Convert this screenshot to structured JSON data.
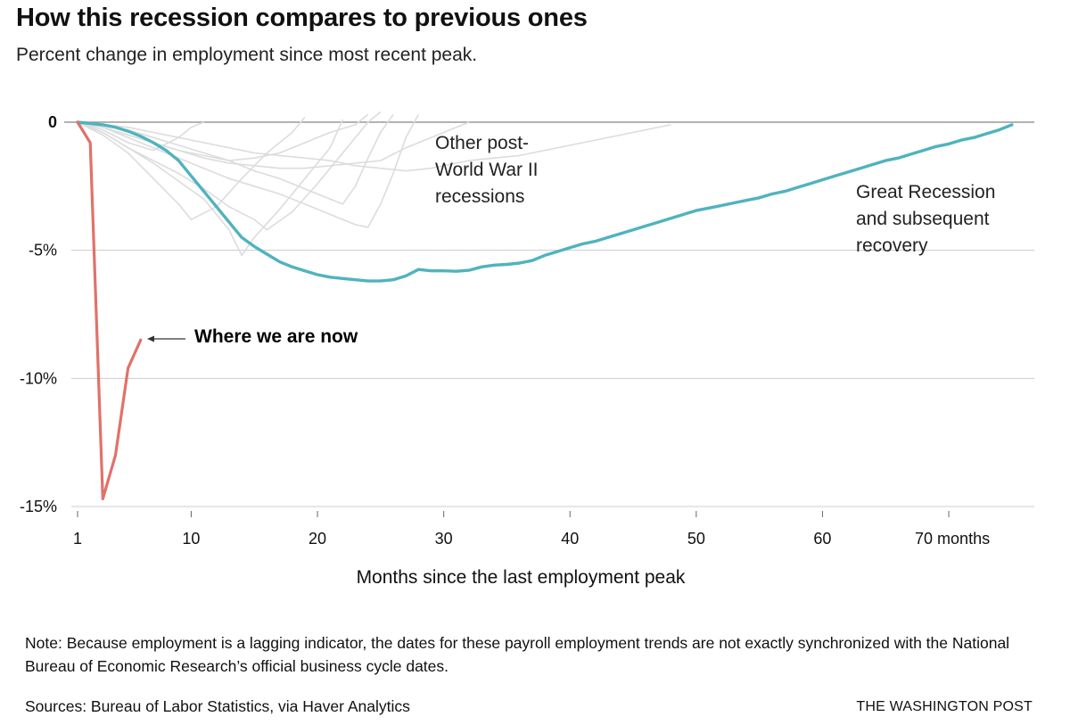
{
  "header": {
    "title": "How this recession compares to previous ones",
    "subtitle": "Percent change in employment since most recent peak."
  },
  "annotations": {
    "other_recessions": [
      "Other post-",
      "World War II",
      "recessions"
    ],
    "great_recession": [
      "Great Recession",
      "and subsequent",
      "recovery"
    ],
    "where_we_are_now": "Where we are now"
  },
  "colors": {
    "current": "#e0726a",
    "great_recession": "#4fb3bf",
    "other": "#dcdcdc",
    "grid": "#cccccc",
    "zero_line": "#999999"
  },
  "footer": {
    "note": "Note: Because employment is a lagging indicator, the dates for these payroll employment trends are not exactly synchronized with the National Bureau of Economic Research’s official business cycle dates.",
    "sources": "Sources: Bureau of Labor Statistics, via Haver Analytics",
    "credit": "THE WASHINGTON POST"
  },
  "chart_data": {
    "type": "line",
    "xlabel": "Months since the last employment peak",
    "xlim": [
      1,
      76
    ],
    "ylim": [
      -15,
      0
    ],
    "x_ticks": [
      {
        "value": 1,
        "label": "1"
      },
      {
        "value": 10,
        "label": "10"
      },
      {
        "value": 20,
        "label": "20"
      },
      {
        "value": 30,
        "label": "30"
      },
      {
        "value": 40,
        "label": "40"
      },
      {
        "value": 50,
        "label": "50"
      },
      {
        "value": 60,
        "label": "60"
      },
      {
        "value": 70,
        "label": "70 months"
      }
    ],
    "y_ticks": [
      {
        "value": 0,
        "label": "0"
      },
      {
        "value": -5,
        "label": "-5%"
      },
      {
        "value": -10,
        "label": "-10%"
      },
      {
        "value": -15,
        "label": "-15%"
      }
    ],
    "grid": "horizontal",
    "series": [
      {
        "name": "Other post-World War II recessions",
        "role": "other",
        "lines": [
          [
            [
              1,
              0
            ],
            [
              3,
              -0.3
            ],
            [
              5,
              -0.8
            ],
            [
              7,
              -1.1
            ],
            [
              9,
              -0.6
            ],
            [
              10,
              -0.2
            ],
            [
              11,
              0
            ]
          ],
          [
            [
              1,
              0
            ],
            [
              3,
              -0.5
            ],
            [
              5,
              -1.2
            ],
            [
              7,
              -2.2
            ],
            [
              9,
              -3.2
            ],
            [
              10,
              -3.8
            ],
            [
              12,
              -3.3
            ],
            [
              14,
              -2.2
            ],
            [
              16,
              -1.2
            ],
            [
              18,
              -0.4
            ],
            [
              19,
              0.2
            ]
          ],
          [
            [
              1,
              0
            ],
            [
              3,
              -0.4
            ],
            [
              5,
              -1.0
            ],
            [
              7,
              -1.6
            ],
            [
              9,
              -2.3
            ],
            [
              11,
              -3.0
            ],
            [
              13,
              -4.2
            ],
            [
              14,
              -5.2
            ],
            [
              15,
              -4.5
            ],
            [
              17,
              -3.4
            ],
            [
              19,
              -2.2
            ],
            [
              21,
              -1.0
            ],
            [
              22,
              0.1
            ]
          ],
          [
            [
              1,
              0
            ],
            [
              3,
              -0.4
            ],
            [
              5,
              -1.0
            ],
            [
              7,
              -1.5
            ],
            [
              9,
              -2.0
            ],
            [
              11,
              -2.6
            ],
            [
              13,
              -3.3
            ],
            [
              15,
              -3.8
            ],
            [
              16,
              -4.2
            ],
            [
              18,
              -3.5
            ],
            [
              20,
              -2.4
            ],
            [
              22,
              -1.2
            ],
            [
              24,
              0
            ],
            [
              25,
              0.4
            ]
          ],
          [
            [
              1,
              0
            ],
            [
              3,
              -0.2
            ],
            [
              5,
              -0.5
            ],
            [
              7,
              -0.8
            ],
            [
              9,
              -1.1
            ],
            [
              11,
              -1.3
            ],
            [
              13,
              -1.5
            ],
            [
              15,
              -1.4
            ],
            [
              17,
              -1.2
            ],
            [
              19,
              -0.8
            ],
            [
              21,
              -0.4
            ],
            [
              23,
              -0.1
            ],
            [
              24,
              0.3
            ]
          ],
          [
            [
              1,
              0
            ],
            [
              3,
              -0.1
            ],
            [
              5,
              -0.3
            ],
            [
              7,
              -0.6
            ],
            [
              9,
              -0.9
            ],
            [
              11,
              -1.2
            ],
            [
              13,
              -1.5
            ],
            [
              15,
              -1.9
            ],
            [
              17,
              -2.2
            ],
            [
              19,
              -2.6
            ],
            [
              21,
              -3.0
            ],
            [
              22,
              -3.2
            ],
            [
              23,
              -2.5
            ],
            [
              24,
              -1.4
            ],
            [
              25,
              -0.4
            ],
            [
              26,
              0.3
            ]
          ],
          [
            [
              1,
              0
            ],
            [
              3,
              -0.2
            ],
            [
              5,
              -0.6
            ],
            [
              7,
              -1.0
            ],
            [
              9,
              -1.4
            ],
            [
              11,
              -1.8
            ],
            [
              13,
              -2.2
            ],
            [
              15,
              -2.5
            ],
            [
              17,
              -2.8
            ],
            [
              19,
              -3.2
            ],
            [
              21,
              -3.6
            ],
            [
              23,
              -4.0
            ],
            [
              24,
              -4.1
            ],
            [
              25,
              -3.2
            ],
            [
              26,
              -2.0
            ],
            [
              27,
              -0.6
            ],
            [
              28,
              0.3
            ]
          ],
          [
            [
              1,
              0
            ],
            [
              3,
              -0.2
            ],
            [
              5,
              -0.5
            ],
            [
              7,
              -0.8
            ],
            [
              9,
              -1.1
            ],
            [
              11,
              -1.4
            ],
            [
              13,
              -1.6
            ],
            [
              15,
              -1.7
            ],
            [
              17,
              -1.8
            ],
            [
              19,
              -1.8
            ],
            [
              21,
              -1.7
            ],
            [
              23,
              -1.6
            ],
            [
              25,
              -1.5
            ],
            [
              27,
              -1.0
            ],
            [
              29,
              -0.6
            ],
            [
              31,
              -0.2
            ],
            [
              32,
              0
            ]
          ],
          [
            [
              1,
              0
            ],
            [
              3,
              -0.1
            ],
            [
              5,
              -0.2
            ],
            [
              7,
              -0.4
            ],
            [
              9,
              -0.6
            ],
            [
              11,
              -0.8
            ],
            [
              13,
              -1.0
            ],
            [
              15,
              -1.2
            ],
            [
              17,
              -1.3
            ],
            [
              19,
              -1.4
            ],
            [
              21,
              -1.5
            ],
            [
              23,
              -1.7
            ],
            [
              25,
              -1.8
            ],
            [
              27,
              -1.9
            ],
            [
              29,
              -1.8
            ],
            [
              30,
              -1.7
            ],
            [
              32,
              -1.5
            ],
            [
              34,
              -1.4
            ],
            [
              36,
              -1.3
            ],
            [
              38,
              -1.1
            ],
            [
              40,
              -0.9
            ],
            [
              42,
              -0.7
            ],
            [
              44,
              -0.5
            ],
            [
              46,
              -0.3
            ],
            [
              48,
              -0.1
            ]
          ]
        ]
      },
      {
        "name": "Great Recession and subsequent recovery",
        "role": "great_recession",
        "points": [
          [
            1,
            0
          ],
          [
            2,
            -0.05
          ],
          [
            3,
            -0.1
          ],
          [
            4,
            -0.2
          ],
          [
            5,
            -0.35
          ],
          [
            6,
            -0.55
          ],
          [
            7,
            -0.8
          ],
          [
            8,
            -1.1
          ],
          [
            9,
            -1.5
          ],
          [
            10,
            -2.1
          ],
          [
            11,
            -2.7
          ],
          [
            12,
            -3.3
          ],
          [
            13,
            -3.9
          ],
          [
            14,
            -4.5
          ],
          [
            15,
            -4.85
          ],
          [
            16,
            -5.15
          ],
          [
            17,
            -5.45
          ],
          [
            18,
            -5.65
          ],
          [
            19,
            -5.8
          ],
          [
            20,
            -5.95
          ],
          [
            21,
            -6.05
          ],
          [
            22,
            -6.1
          ],
          [
            23,
            -6.15
          ],
          [
            24,
            -6.2
          ],
          [
            25,
            -6.2
          ],
          [
            26,
            -6.15
          ],
          [
            27,
            -6.0
          ],
          [
            28,
            -5.75
          ],
          [
            29,
            -5.8
          ],
          [
            30,
            -5.8
          ],
          [
            31,
            -5.82
          ],
          [
            32,
            -5.78
          ],
          [
            33,
            -5.65
          ],
          [
            34,
            -5.58
          ],
          [
            35,
            -5.55
          ],
          [
            36,
            -5.5
          ],
          [
            37,
            -5.4
          ],
          [
            38,
            -5.2
          ],
          [
            39,
            -5.05
          ],
          [
            40,
            -4.9
          ],
          [
            41,
            -4.75
          ],
          [
            42,
            -4.65
          ],
          [
            43,
            -4.5
          ],
          [
            44,
            -4.35
          ],
          [
            45,
            -4.2
          ],
          [
            46,
            -4.05
          ],
          [
            47,
            -3.9
          ],
          [
            48,
            -3.75
          ],
          [
            49,
            -3.6
          ],
          [
            50,
            -3.45
          ],
          [
            51,
            -3.35
          ],
          [
            52,
            -3.25
          ],
          [
            53,
            -3.15
          ],
          [
            54,
            -3.05
          ],
          [
            55,
            -2.95
          ],
          [
            56,
            -2.8
          ],
          [
            57,
            -2.7
          ],
          [
            58,
            -2.55
          ],
          [
            59,
            -2.4
          ],
          [
            60,
            -2.25
          ],
          [
            61,
            -2.1
          ],
          [
            62,
            -1.95
          ],
          [
            63,
            -1.8
          ],
          [
            64,
            -1.65
          ],
          [
            65,
            -1.5
          ],
          [
            66,
            -1.4
          ],
          [
            67,
            -1.25
          ],
          [
            68,
            -1.1
          ],
          [
            69,
            -0.95
          ],
          [
            70,
            -0.85
          ],
          [
            71,
            -0.7
          ],
          [
            72,
            -0.6
          ],
          [
            73,
            -0.45
          ],
          [
            74,
            -0.3
          ],
          [
            75,
            -0.1
          ]
        ]
      },
      {
        "name": "Where we are now",
        "role": "current",
        "points": [
          [
            1,
            0
          ],
          [
            2,
            -0.8
          ],
          [
            3,
            -14.7
          ],
          [
            4,
            -13.0
          ],
          [
            5,
            -9.6
          ],
          [
            6,
            -8.5
          ]
        ]
      }
    ]
  }
}
